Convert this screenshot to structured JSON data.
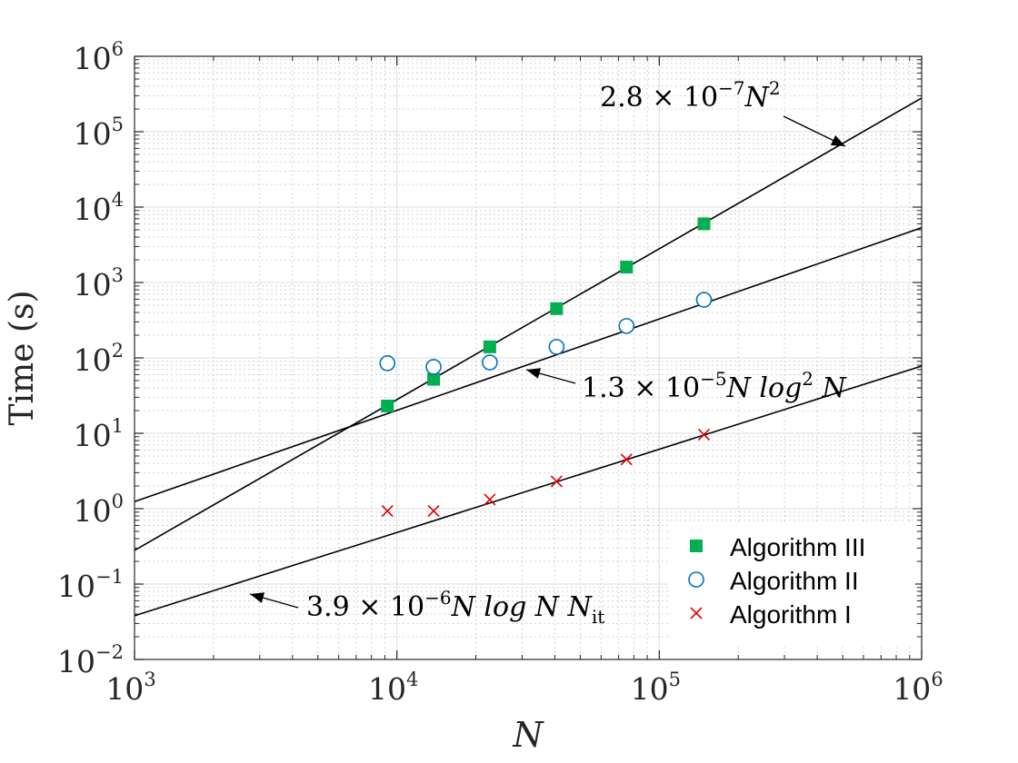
{
  "chart_data": {
    "type": "scatter",
    "xscale": "log",
    "yscale": "log",
    "xlim": [
      1000,
      1000000
    ],
    "ylim": [
      0.01,
      1000000
    ],
    "xlabel": "N",
    "ylabel": "Time (s)",
    "grid": true,
    "minor_grid": true,
    "legend_position": "bottom-right",
    "x_ticks": [
      {
        "value": 1000,
        "base": "10",
        "exp": "3"
      },
      {
        "value": 10000,
        "base": "10",
        "exp": "4"
      },
      {
        "value": 100000,
        "base": "10",
        "exp": "5"
      },
      {
        "value": 1000000,
        "base": "10",
        "exp": "6"
      }
    ],
    "y_ticks": [
      {
        "value": 0.01,
        "base": "10",
        "exp": "−2"
      },
      {
        "value": 0.1,
        "base": "10",
        "exp": "−1"
      },
      {
        "value": 1,
        "base": "10",
        "exp": "0"
      },
      {
        "value": 10,
        "base": "10",
        "exp": "1"
      },
      {
        "value": 100,
        "base": "10",
        "exp": "2"
      },
      {
        "value": 1000,
        "base": "10",
        "exp": "3"
      },
      {
        "value": 10000,
        "base": "10",
        "exp": "4"
      },
      {
        "value": 100000,
        "base": "10",
        "exp": "5"
      },
      {
        "value": 1000000,
        "base": "10",
        "exp": "6"
      }
    ],
    "series": [
      {
        "name": "Algorithm III",
        "marker": "filled-square",
        "color": "#00b050",
        "x": [
          9200,
          13800,
          22600,
          40600,
          75000,
          148000
        ],
        "y": [
          23,
          52,
          140,
          450,
          1600,
          6000
        ]
      },
      {
        "name": "Algorithm II",
        "marker": "open-circle",
        "color": "#0070c0",
        "x": [
          9200,
          13800,
          22600,
          40600,
          75000,
          148000
        ],
        "y": [
          85,
          76,
          87,
          140,
          265,
          590
        ]
      },
      {
        "name": "Algorithm I",
        "marker": "cross",
        "color": "#e00000",
        "x": [
          9200,
          13800,
          22600,
          40600,
          75000,
          148000
        ],
        "y": [
          0.93,
          0.93,
          1.32,
          2.3,
          4.5,
          9.6
        ]
      }
    ],
    "fit_lines": [
      {
        "id": "n2",
        "x": [
          1000,
          1000000
        ],
        "y": [
          0.28,
          280000
        ]
      },
      {
        "id": "nlog2n",
        "x": [
          1000,
          1000000
        ],
        "y": [
          1.24,
          5330
        ]
      },
      {
        "id": "nlognnit",
        "x": [
          1000,
          1000000
        ],
        "y": [
          0.038,
          78
        ]
      }
    ],
    "annotations": [
      {
        "id": "n2",
        "coef": "2.8",
        "times": "×",
        "ten": "10",
        "exp": "−7",
        "body": "N",
        "power": "2",
        "tail": "",
        "sub": "",
        "label_x": 660,
        "label_y": 117,
        "arrow_from": [
          862,
          128
        ],
        "arrow_to": [
          930,
          161
        ]
      },
      {
        "id": "nlog2n",
        "coef": "1.3",
        "times": "×",
        "ten": "10",
        "exp": "−5",
        "body": "N log",
        "power": "2",
        "tail": " N",
        "sub": "",
        "label_x": 640,
        "label_y": 437,
        "arrow_from": [
          633,
          422
        ],
        "arrow_to": [
          579,
          407
        ]
      },
      {
        "id": "nlognnit",
        "coef": "3.9",
        "times": "×",
        "ten": "10",
        "exp": "−6",
        "body": "N log N N",
        "power": "",
        "tail": "",
        "sub": "it",
        "label_x": 337,
        "label_y": 678,
        "arrow_from": [
          328,
          669
        ],
        "arrow_to": [
          275,
          654
        ]
      }
    ]
  }
}
